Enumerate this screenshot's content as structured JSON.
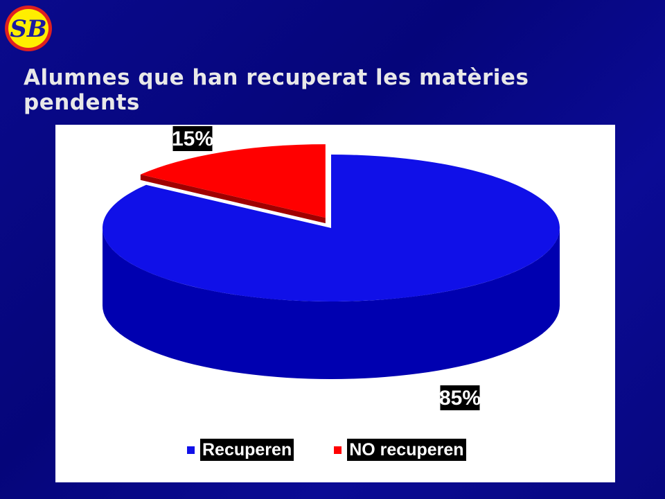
{
  "slide": {
    "title": "Alumnes que han recuperat les matèries pendents",
    "logo_text": "SB"
  },
  "colors": {
    "background": "#0a0a8c",
    "recuperen": "#1010e8",
    "recuperen_side": "#0000b0",
    "no_recuperen": "#ff0000",
    "no_recuperen_side": "#a00000",
    "logo_bg": "#ffee00",
    "logo_ring": "#e02020"
  },
  "chart_data": {
    "type": "pie",
    "categories": [
      "Recuperen",
      "NO recuperen"
    ],
    "values": [
      85,
      15
    ],
    "data_labels": [
      "85%",
      "15%"
    ],
    "legend_position": "bottom",
    "exploded": "NO recuperen",
    "style": "3d"
  }
}
